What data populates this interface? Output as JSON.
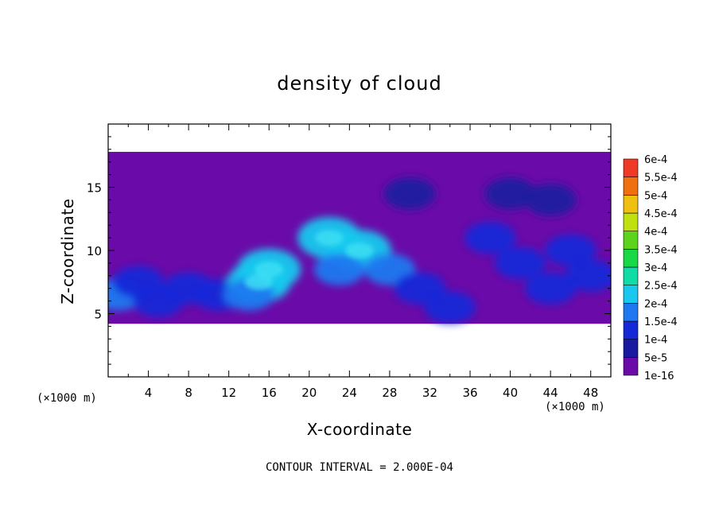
{
  "chart_data": {
    "type": "heatmap",
    "title": "density of cloud",
    "xlabel": "X-coordinate",
    "ylabel": "Z-coordinate",
    "x_unit": "(×1000 m)",
    "y_unit": "(×1000 m)",
    "xlim": [
      0,
      50
    ],
    "ylim": [
      0,
      20
    ],
    "x_ticks": [
      4,
      8,
      12,
      16,
      20,
      24,
      28,
      32,
      36,
      40,
      44,
      48
    ],
    "y_ticks": [
      5,
      10,
      15
    ],
    "grid": false,
    "colorbar": {
      "position": "right",
      "levels": [
        "1e-16",
        "5e-5",
        "1e-4",
        "1.5e-4",
        "2e-4",
        "2.5e-4",
        "3e-4",
        "3.5e-4",
        "4e-4",
        "4.5e-4",
        "5e-4",
        "5.5e-4",
        "6e-4"
      ],
      "colors": [
        "#6a0aa8",
        "#1a1aa0",
        "#1428d8",
        "#1f78f0",
        "#18c8ee",
        "#10dca8",
        "#18d848",
        "#5cd41c",
        "#c0e010",
        "#f0c010",
        "#f07010",
        "#f03a28",
        "#f07878"
      ]
    },
    "cloud_band_z_range": [
      4.2,
      17.8
    ],
    "cells": [
      {
        "x": 1,
        "z": 6.5,
        "level": 3
      },
      {
        "x": 3,
        "z": 7.5,
        "level": 2
      },
      {
        "x": 5,
        "z": 6,
        "level": 2
      },
      {
        "x": 8,
        "z": 7,
        "level": 2
      },
      {
        "x": 11,
        "z": 6.5,
        "level": 2
      },
      {
        "x": 15,
        "z": 7.5,
        "level": 4
      },
      {
        "x": 16,
        "z": 8.5,
        "level": 4
      },
      {
        "x": 14,
        "z": 6.5,
        "level": 3
      },
      {
        "x": 22,
        "z": 11,
        "level": 4
      },
      {
        "x": 25,
        "z": 10,
        "level": 4
      },
      {
        "x": 23,
        "z": 8.5,
        "level": 3
      },
      {
        "x": 28,
        "z": 8.5,
        "level": 3
      },
      {
        "x": 31,
        "z": 7,
        "level": 2
      },
      {
        "x": 34,
        "z": 5.5,
        "level": 2
      },
      {
        "x": 38,
        "z": 11,
        "level": 2
      },
      {
        "x": 41,
        "z": 9,
        "level": 2
      },
      {
        "x": 44,
        "z": 7,
        "level": 2
      },
      {
        "x": 46,
        "z": 10,
        "level": 2
      },
      {
        "x": 48,
        "z": 8,
        "level": 2
      },
      {
        "x": 40,
        "z": 14.5,
        "level": 1
      },
      {
        "x": 44,
        "z": 14,
        "level": 1
      },
      {
        "x": 30,
        "z": 14.5,
        "level": 1
      }
    ]
  },
  "footer": {
    "contour_interval": "CONTOUR INTERVAL = 2.000E-04"
  }
}
